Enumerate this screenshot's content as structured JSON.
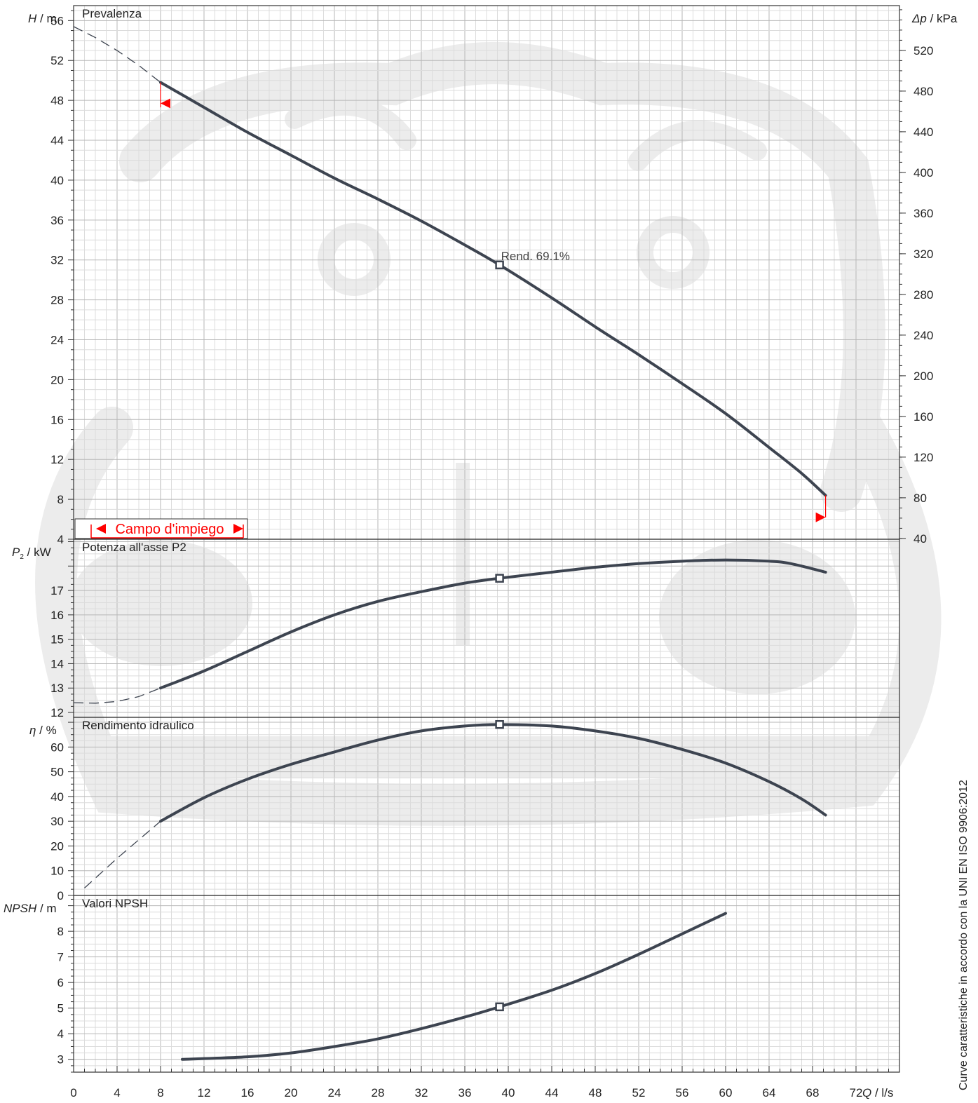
{
  "colors": {
    "curve": "#3d4450",
    "grid_minor": "#dcdcdc",
    "grid_major": "#b7b7b7",
    "axis": "#333333",
    "range": "#ff0000",
    "watermark": "#ececec",
    "bep_marker": "#3d4450"
  },
  "footnote": "Curve caratteristiche in accordo con la UNI EN ISO 9906:2012",
  "chart_data": [
    {
      "type": "line",
      "id": "head",
      "title": "Prevalenza",
      "ylabel_var": "H",
      "ylabel_unit": "/ m",
      "ylabel_right_var": "Δp",
      "ylabel_right_unit": "/ kPa",
      "ylim": [
        4,
        57.5
      ],
      "y_ticks": [
        4,
        8,
        12,
        16,
        20,
        24,
        28,
        32,
        36,
        40,
        44,
        48,
        52,
        56
      ],
      "y_ticks_right": [
        40,
        80,
        120,
        160,
        200,
        240,
        280,
        320,
        360,
        400,
        440,
        480,
        520
      ],
      "kpa_per_m": 9.81,
      "x": [
        8,
        12,
        16,
        20,
        24,
        28,
        32,
        36,
        39.2,
        44,
        48,
        52,
        56,
        60,
        64,
        67,
        69.2
      ],
      "y": [
        49.8,
        47.3,
        44.8,
        42.5,
        40.2,
        38.1,
        35.9,
        33.5,
        31.5,
        28.2,
        25.3,
        22.5,
        19.6,
        16.6,
        13.2,
        10.6,
        8.4
      ],
      "dashed_x": [
        0,
        2,
        4,
        6,
        8
      ],
      "dashed_y": [
        55.4,
        54.3,
        53.0,
        51.5,
        49.8
      ],
      "bep": {
        "x": 39.2,
        "y": 31.5
      },
      "bep_label": "Rend.  69.1%",
      "range_label": "Campo d'impiego",
      "range_min_x": 8,
      "range_max_x": 69.2
    },
    {
      "type": "line",
      "id": "power",
      "title": "Potenza all'asse P2",
      "ylabel_var": "P",
      "ylabel_sub": "2",
      "ylabel_unit": "/ kW",
      "ylim": [
        11.8,
        19.1
      ],
      "y_ticks": [
        12,
        13,
        14,
        15,
        16,
        17
      ],
      "x": [
        8,
        12,
        16,
        20,
        24,
        28,
        32,
        36,
        39.2,
        44,
        48,
        52,
        56,
        60,
        64,
        66,
        69.2
      ],
      "y": [
        13.0,
        13.7,
        14.5,
        15.3,
        16.0,
        16.55,
        16.95,
        17.3,
        17.5,
        17.75,
        17.95,
        18.1,
        18.2,
        18.25,
        18.2,
        18.1,
        17.75
      ],
      "dashed_x": [
        0,
        2,
        4,
        6,
        8
      ],
      "dashed_y": [
        12.4,
        12.38,
        12.45,
        12.65,
        13.0
      ],
      "bep": {
        "x": 39.2,
        "y": 17.5
      }
    },
    {
      "type": "line",
      "id": "efficiency",
      "title": "Rendimento idraulico",
      "ylabel_var": "η",
      "ylabel_unit": "/ %",
      "ylim": [
        0,
        72
      ],
      "y_ticks": [
        0,
        10,
        20,
        30,
        40,
        50,
        60
      ],
      "x": [
        8,
        12,
        16,
        20,
        24,
        28,
        32,
        36,
        39.2,
        44,
        48,
        52,
        56,
        60,
        64,
        67,
        69.2
      ],
      "y": [
        30,
        39.5,
        47,
        53,
        58,
        62.8,
        66.5,
        68.5,
        69.1,
        68.5,
        66.5,
        63.5,
        59,
        53.5,
        46,
        39,
        32.5
      ],
      "dashed_x": [
        1,
        4,
        8
      ],
      "dashed_y": [
        3,
        15,
        30
      ],
      "bep": {
        "x": 39.2,
        "y": 69.1
      }
    },
    {
      "type": "line",
      "id": "npsh",
      "title": "Valori NPSH",
      "ylabel_var": "NPSH",
      "ylabel_unit": "/ m",
      "ylim": [
        2.5,
        9.4
      ],
      "y_ticks": [
        3,
        4,
        5,
        6,
        7,
        8
      ],
      "x": [
        10,
        16,
        20,
        24,
        28,
        32,
        36,
        39.2,
        44,
        48,
        52,
        56,
        60
      ],
      "y": [
        3.0,
        3.1,
        3.25,
        3.5,
        3.8,
        4.2,
        4.65,
        5.05,
        5.7,
        6.35,
        7.1,
        7.9,
        8.7
      ],
      "bep": {
        "x": 39.2,
        "y": 5.05
      }
    }
  ],
  "x_axis": {
    "var": "Q",
    "unit": "/ l/s",
    "min": 0,
    "max": 76,
    "ticks": [
      0,
      4,
      8,
      12,
      16,
      20,
      24,
      28,
      32,
      36,
      40,
      44,
      48,
      52,
      56,
      60,
      64,
      68,
      72
    ]
  }
}
